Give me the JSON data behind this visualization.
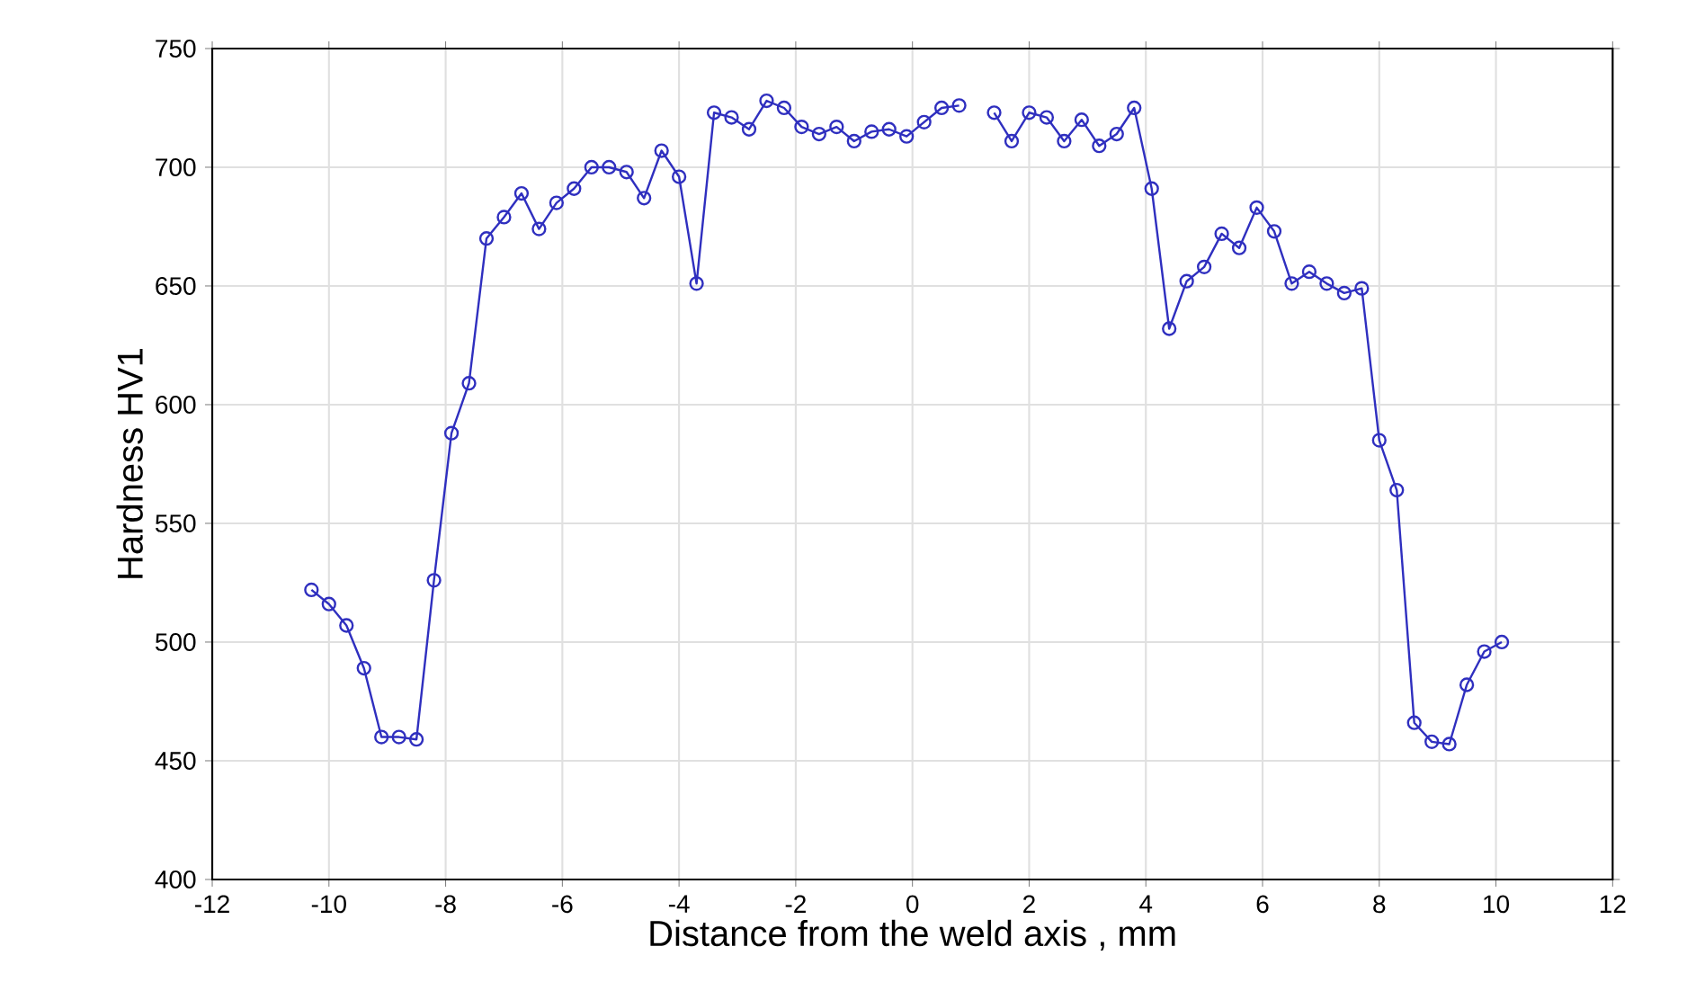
{
  "chart_data": {
    "type": "line",
    "xlabel": "Distance from the weld axis , mm",
    "ylabel": "Hardness HV1",
    "x": [
      -10.3,
      -10.0,
      -9.7,
      -9.4,
      -9.1,
      -8.8,
      -8.5,
      -8.2,
      -7.9,
      -7.6,
      -7.3,
      -7.0,
      -6.7,
      -6.4,
      -6.1,
      -5.8,
      -5.5,
      -5.2,
      -4.9,
      -4.6,
      -4.3,
      -4.0,
      -3.7,
      -3.4,
      -3.1,
      -2.8,
      -2.5,
      -2.2,
      -1.9,
      -1.6,
      -1.3,
      -1.0,
      -0.7,
      -0.4,
      -0.1,
      0.2,
      0.5,
      0.8,
      1.1,
      1.4,
      1.7,
      2.0,
      2.3,
      2.6,
      2.9,
      3.2,
      3.5,
      3.8,
      4.1,
      4.4,
      4.7,
      5.0,
      5.3,
      5.6,
      5.9,
      6.2,
      6.5,
      6.8,
      7.1,
      7.4,
      7.7,
      8.0,
      8.3,
      8.6,
      8.9,
      9.2,
      9.5,
      9.8,
      10.1
    ],
    "series": [
      {
        "color": "#2f2fbf",
        "values": [
          522,
          516,
          507,
          489,
          460,
          460,
          459,
          526,
          588,
          609,
          670,
          679,
          689,
          674,
          685,
          691,
          700,
          700,
          698,
          687,
          707,
          696,
          651,
          723,
          721,
          716,
          728,
          725,
          717,
          714,
          717,
          711,
          715,
          716,
          713,
          719,
          725,
          726,
          null,
          723,
          711,
          723,
          721,
          711,
          720,
          709,
          714,
          725,
          691,
          632,
          652,
          658,
          672,
          666,
          683,
          673,
          651,
          656,
          651,
          647,
          649,
          585,
          564,
          466,
          458,
          457,
          482,
          496,
          500
        ]
      }
    ],
    "xlim": [
      -12,
      12
    ],
    "xticks": [
      -12,
      -10,
      -8,
      -6,
      -4,
      -2,
      0,
      2,
      4,
      6,
      8,
      10,
      12
    ],
    "ylim": [
      400,
      750
    ],
    "yticks": [
      400,
      450,
      500,
      550,
      600,
      650,
      700,
      750
    ],
    "grid": true,
    "marker": "circle",
    "line_style": "solid"
  }
}
